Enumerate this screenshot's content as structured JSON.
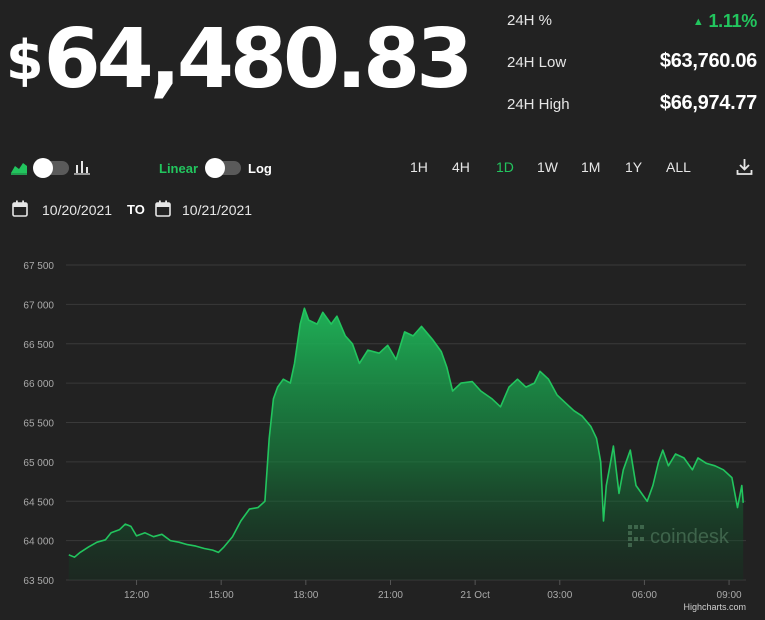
{
  "ticker": {
    "dollar": "$",
    "price": "64,480.83"
  },
  "stats": {
    "pct_label": "24H %",
    "pct_value": "1.11%",
    "low_label": "24H Low",
    "low_value": "$63,760.06",
    "high_label": "24H High",
    "high_value": "$66,974.77"
  },
  "toolbar": {
    "area_chart_icon": "area-chart-icon",
    "bar_chart_icon": "bar-chart-icon",
    "download_icon": "download-icon",
    "chart_type_toggle_on": false,
    "scale_toggle_on": false,
    "linear_label": "Linear",
    "log_label": "Log",
    "ranges": [
      "1H",
      "4H",
      "1D",
      "1W",
      "1M",
      "1Y",
      "ALL"
    ],
    "active_range": "1D"
  },
  "dates": {
    "from": "10/20/2021",
    "to_label": "TO",
    "to": "10/21/2021",
    "calendar_icon": "calendar-icon"
  },
  "colors": {
    "accent": "#22c55e",
    "background": "#222222",
    "grid": "#3a3a3a",
    "line": "#22c55e"
  },
  "chart_data": {
    "type": "area",
    "y_ticks": [
      "67 500",
      "67 000",
      "66 500",
      "66 000",
      "65 500",
      "65 000",
      "64 500",
      "64 000",
      "63 500"
    ],
    "ylim": [
      63500,
      67500
    ],
    "x_ticks": [
      "12:00",
      "15:00",
      "18:00",
      "21:00",
      "21 Oct",
      "03:00",
      "06:00",
      "09:00"
    ],
    "x_tick_hours": [
      12,
      15,
      18,
      21,
      24,
      27,
      30,
      33
    ],
    "xlim": [
      9.5,
      33.6
    ],
    "watermark": "coindesk",
    "credit": "Highcharts.com",
    "points": [
      [
        9.6,
        63820
      ],
      [
        9.8,
        63790
      ],
      [
        10.0,
        63850
      ],
      [
        10.3,
        63920
      ],
      [
        10.6,
        63980
      ],
      [
        10.9,
        64010
      ],
      [
        11.1,
        64100
      ],
      [
        11.4,
        64140
      ],
      [
        11.6,
        64210
      ],
      [
        11.8,
        64180
      ],
      [
        12.0,
        64060
      ],
      [
        12.3,
        64100
      ],
      [
        12.6,
        64050
      ],
      [
        12.9,
        64080
      ],
      [
        13.2,
        64000
      ],
      [
        13.5,
        63980
      ],
      [
        13.8,
        63950
      ],
      [
        14.1,
        63930
      ],
      [
        14.4,
        63900
      ],
      [
        14.7,
        63880
      ],
      [
        14.9,
        63850
      ],
      [
        15.1,
        63920
      ],
      [
        15.4,
        64050
      ],
      [
        15.7,
        64250
      ],
      [
        16.0,
        64400
      ],
      [
        16.3,
        64420
      ],
      [
        16.55,
        64500
      ],
      [
        16.7,
        65300
      ],
      [
        16.85,
        65800
      ],
      [
        17.0,
        65950
      ],
      [
        17.2,
        66050
      ],
      [
        17.45,
        66000
      ],
      [
        17.6,
        66250
      ],
      [
        17.8,
        66750
      ],
      [
        17.95,
        66950
      ],
      [
        18.1,
        66800
      ],
      [
        18.4,
        66750
      ],
      [
        18.6,
        66900
      ],
      [
        18.9,
        66750
      ],
      [
        19.1,
        66850
      ],
      [
        19.4,
        66600
      ],
      [
        19.65,
        66500
      ],
      [
        19.9,
        66250
      ],
      [
        20.2,
        66420
      ],
      [
        20.6,
        66380
      ],
      [
        20.9,
        66480
      ],
      [
        21.2,
        66300
      ],
      [
        21.5,
        66650
      ],
      [
        21.8,
        66600
      ],
      [
        22.1,
        66720
      ],
      [
        22.5,
        66550
      ],
      [
        22.8,
        66400
      ],
      [
        23.0,
        66200
      ],
      [
        23.2,
        65900
      ],
      [
        23.5,
        66000
      ],
      [
        23.9,
        66020
      ],
      [
        24.2,
        65900
      ],
      [
        24.6,
        65800
      ],
      [
        24.9,
        65700
      ],
      [
        25.2,
        65950
      ],
      [
        25.5,
        66050
      ],
      [
        25.8,
        65950
      ],
      [
        26.1,
        66000
      ],
      [
        26.3,
        66150
      ],
      [
        26.6,
        66050
      ],
      [
        26.9,
        65850
      ],
      [
        27.2,
        65750
      ],
      [
        27.5,
        65650
      ],
      [
        27.8,
        65580
      ],
      [
        28.1,
        65450
      ],
      [
        28.3,
        65300
      ],
      [
        28.45,
        65000
      ],
      [
        28.55,
        64250
      ],
      [
        28.65,
        64700
      ],
      [
        28.75,
        64900
      ],
      [
        28.9,
        65200
      ],
      [
        29.1,
        64600
      ],
      [
        29.25,
        64900
      ],
      [
        29.5,
        65150
      ],
      [
        29.7,
        64700
      ],
      [
        29.9,
        64600
      ],
      [
        30.1,
        64500
      ],
      [
        30.3,
        64700
      ],
      [
        30.5,
        65000
      ],
      [
        30.65,
        65150
      ],
      [
        30.85,
        64950
      ],
      [
        31.1,
        65100
      ],
      [
        31.4,
        65050
      ],
      [
        31.7,
        64900
      ],
      [
        31.9,
        65050
      ],
      [
        32.2,
        64980
      ],
      [
        32.5,
        64950
      ],
      [
        32.8,
        64900
      ],
      [
        33.1,
        64800
      ],
      [
        33.3,
        64420
      ],
      [
        33.45,
        64700
      ],
      [
        33.5,
        64480
      ]
    ]
  }
}
